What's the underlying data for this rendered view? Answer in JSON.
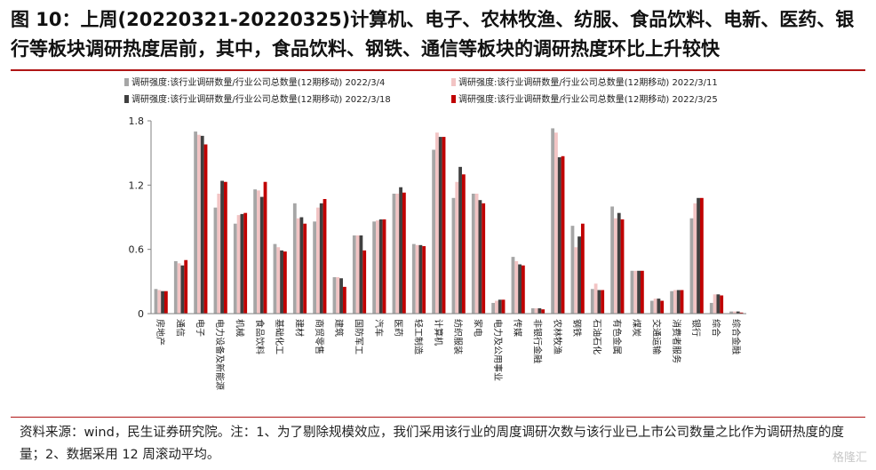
{
  "title": "图 10：上周(20220321-20220325)计算机、电子、农林牧渔、纺服、食品饮料、电新、医药、银行等板块调研热度居前，其中，食品饮料、钢铁、通信等板块的调研热度环比上升较快",
  "footer": "资料来源：wind，民生证券研究院。注：1、为了剔除规模效应，我们采用该行业的周度调研次数与该行业已上市公司数量之比作为调研热度的度量；2、数据采用 12 周滚动平均。",
  "watermark": "格隆汇",
  "colors": {
    "s1": "#a6a6a6",
    "s2": "#f2c4c4",
    "s3": "#404040",
    "s4": "#c00000",
    "rule": "#b01515"
  },
  "chart_data": {
    "type": "bar",
    "ylim": [
      0,
      1.8
    ],
    "yticks": [
      "0",
      "0.6",
      "1.2",
      "1.8"
    ],
    "legend_position": "top",
    "categories": [
      "房地产",
      "通信",
      "电子",
      "电力设备及新能源",
      "机械",
      "食品饮料",
      "基础化工",
      "建材",
      "商贸零售",
      "建筑",
      "国防军工",
      "汽车",
      "医药",
      "轻工制造",
      "计算机",
      "纺织服装",
      "家电",
      "电力及公用事业",
      "传媒",
      "非银行金融",
      "农林牧渔",
      "钢铁",
      "石油石化",
      "有色金属",
      "煤炭",
      "交通运输",
      "消费者服务",
      "银行",
      "综合",
      "综合金融"
    ],
    "series": [
      {
        "name": "调研强度:该行业调研数量/行业公司总数量(12期移动) 2022/3/4",
        "values": [
          0.23,
          0.49,
          1.7,
          0.99,
          0.84,
          1.16,
          0.65,
          1.03,
          0.86,
          0.34,
          0.73,
          0.86,
          1.12,
          0.65,
          1.53,
          1.08,
          1.12,
          0.1,
          0.53,
          0.05,
          1.73,
          0.82,
          0.23,
          1.0,
          0.4,
          0.12,
          0.21,
          0.89,
          0.1,
          0.02
        ]
      },
      {
        "name": "调研强度:该行业调研数量/行业公司总数量(12期移动) 2022/3/11",
        "values": [
          0.22,
          0.47,
          1.67,
          1.12,
          0.92,
          1.15,
          0.62,
          0.89,
          0.99,
          0.34,
          0.73,
          0.87,
          1.12,
          0.64,
          1.69,
          1.23,
          1.12,
          0.12,
          0.49,
          0.05,
          1.69,
          0.62,
          0.28,
          0.89,
          0.4,
          0.14,
          0.22,
          1.03,
          0.18,
          0.02
        ]
      },
      {
        "name": "调研强度:该行业调研数量/行业公司总数量(12期移动) 2022/3/18",
        "values": [
          0.21,
          0.45,
          1.66,
          1.24,
          0.93,
          1.09,
          0.59,
          0.9,
          1.03,
          0.33,
          0.73,
          0.88,
          1.18,
          0.64,
          1.65,
          1.37,
          1.06,
          0.13,
          0.46,
          0.05,
          1.46,
          0.72,
          0.22,
          0.94,
          0.4,
          0.14,
          0.22,
          1.08,
          0.18,
          0.02
        ]
      },
      {
        "name": "调研强度:该行业调研数量/行业公司总数量(12期移动) 2022/3/25",
        "values": [
          0.21,
          0.5,
          1.58,
          1.23,
          0.94,
          1.23,
          0.58,
          0.84,
          1.07,
          0.25,
          0.59,
          0.88,
          1.13,
          0.63,
          1.65,
          1.3,
          1.03,
          0.13,
          0.45,
          0.04,
          1.47,
          0.84,
          0.22,
          0.88,
          0.4,
          0.12,
          0.22,
          1.08,
          0.17,
          0.01
        ]
      }
    ]
  }
}
